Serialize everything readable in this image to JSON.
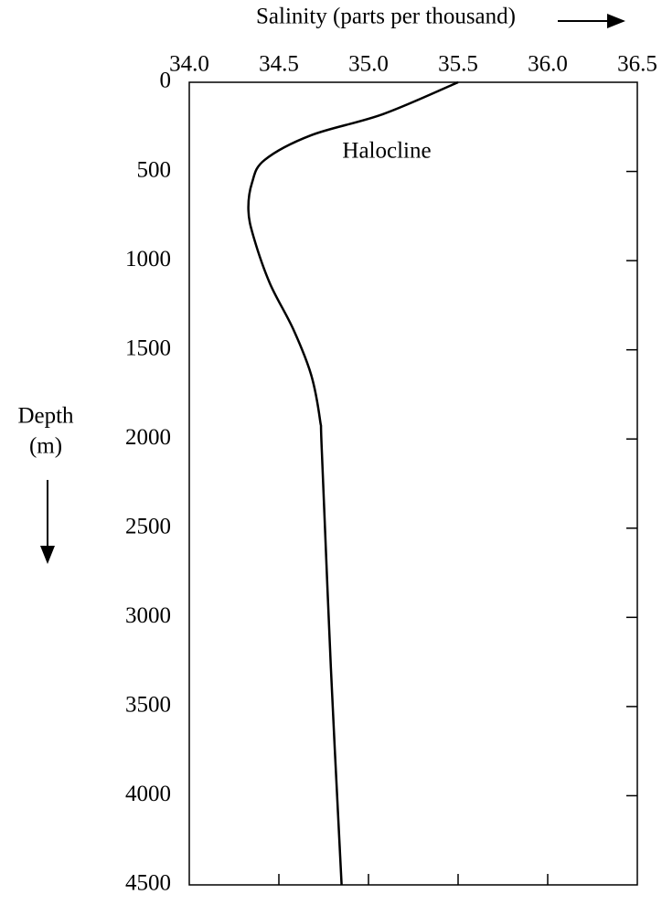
{
  "chart_data": {
    "type": "line",
    "xlabel": "Salinity (parts per thousand)",
    "ylabel": [
      "Depth",
      "(m)"
    ],
    "annotation": "Halocline",
    "x": [
      35.5,
      35.08,
      34.68,
      34.42,
      34.35,
      34.33,
      34.36,
      34.45,
      34.58,
      34.68,
      34.73,
      34.74,
      34.79,
      34.85
    ],
    "values": [
      0,
      179,
      297,
      436,
      564,
      718,
      871,
      1128,
      1384,
      1640,
      1896,
      2076,
      3280,
      4500
    ],
    "color": "#000000",
    "xlim": [
      34.0,
      36.5
    ],
    "xticks": [
      {
        "value": 34,
        "label": "34.0"
      },
      34.5,
      {
        "value": 35,
        "label": "35.0"
      },
      35.5,
      {
        "value": 36,
        "label": "36.0"
      },
      36.5
    ],
    "ylim": [
      0,
      4500
    ],
    "yticks": [
      0,
      500,
      1000,
      1500,
      2000,
      2500,
      3000,
      3500,
      4000,
      4500
    ],
    "y_inverted": true
  }
}
